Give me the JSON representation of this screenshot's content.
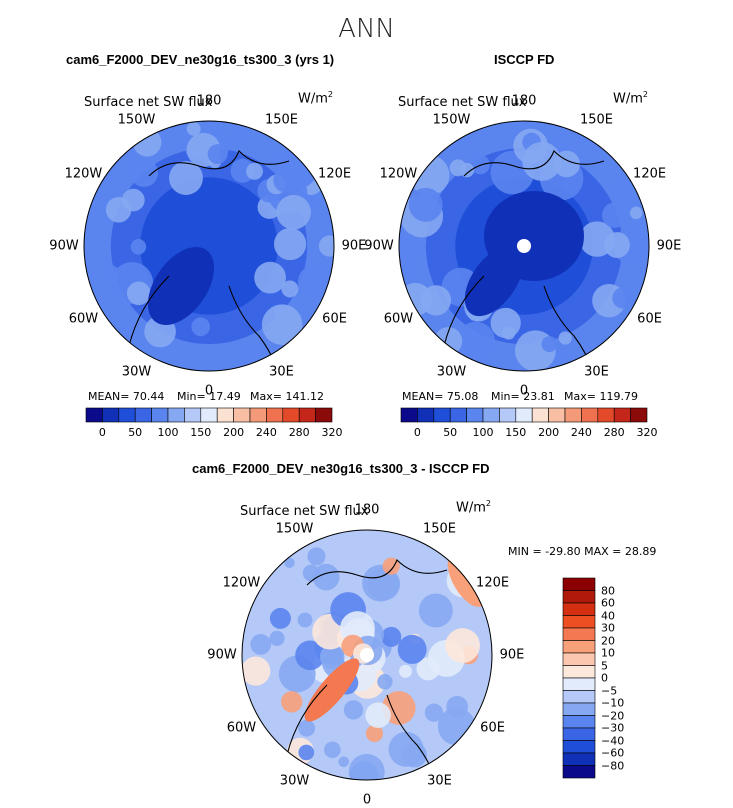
{
  "season": "ANN",
  "chart_data": [
    {
      "type": "heatmap",
      "projection": "north polar stereographic",
      "title": "cam6_F2000_DEV_ne30g16_ts300_3 (yrs 1)",
      "variable": "Surface net SW flux",
      "units": "W/m",
      "units_sup": "2",
      "lon_labels": [
        "180",
        "150E",
        "120E",
        "90E",
        "60E",
        "30E",
        "0",
        "30W",
        "60W",
        "90W",
        "120W",
        "150W"
      ],
      "stats_text": {
        "mean": "MEAN=  70.44",
        "min": "Min=  17.49",
        "max": "Max= 141.12"
      },
      "stats": {
        "mean": 70.44,
        "min": 17.49,
        "max": 141.12
      },
      "colorbar_ticks": [
        "0",
        "50",
        "100",
        "150",
        "200",
        "240",
        "280",
        "320"
      ]
    },
    {
      "type": "heatmap",
      "projection": "north polar stereographic",
      "title": "ISCCP FD",
      "variable": "Surface net SW flux",
      "units": "W/m",
      "units_sup": "2",
      "lon_labels": [
        "180",
        "150E",
        "120E",
        "90E",
        "60E",
        "30E",
        "0",
        "30W",
        "60W",
        "90W",
        "120W",
        "150W"
      ],
      "stats_text": {
        "mean": "MEAN=  75.08",
        "min": "Min=  23.81",
        "max": "Max= 119.79"
      },
      "stats": {
        "mean": 75.08,
        "min": 23.81,
        "max": 119.79
      },
      "colorbar_ticks": [
        "0",
        "50",
        "100",
        "150",
        "200",
        "240",
        "280",
        "320"
      ]
    },
    {
      "type": "heatmap",
      "projection": "north polar stereographic",
      "title": "cam6_F2000_DEV_ne30g16_ts300_3 - ISCCP FD",
      "variable": "Surface net SW flux",
      "units": "W/m",
      "units_sup": "2",
      "lon_labels": [
        "180",
        "150E",
        "120E",
        "90E",
        "60E",
        "30E",
        "0",
        "30W",
        "60W",
        "90W",
        "120W",
        "150W"
      ],
      "stats_text": "MIN = -29.80 MAX =  28.89",
      "stats": {
        "min": -29.8,
        "max": 28.89
      },
      "colorbar_ticks": [
        "80",
        "60",
        "40",
        "30",
        "20",
        "10",
        "5",
        "0",
        "−5",
        "−10",
        "−20",
        "−30",
        "−40",
        "−60",
        "−80"
      ]
    }
  ],
  "colors": {
    "seq_scale": [
      "#0a0a8a",
      "#1030b8",
      "#1f4fd8",
      "#3a66e6",
      "#5a84ee",
      "#86a8f2",
      "#b4c9f7",
      "#e2ebfb",
      "#fbe1d2",
      "#f8bfa5",
      "#f49a78",
      "#ef7150",
      "#e24a2a",
      "#c4271a",
      "#8b0a0a"
    ],
    "diff_scale": [
      "#8b0000",
      "#b01a0a",
      "#d42f10",
      "#ee4f22",
      "#f47850",
      "#f8a07a",
      "#fbc7ae",
      "#fde8dc",
      "#e2ebfb",
      "#b4c9f7",
      "#86a8f2",
      "#5a84ee",
      "#3a66e6",
      "#1f4fd8",
      "#1030b8",
      "#0a0a8a"
    ]
  }
}
